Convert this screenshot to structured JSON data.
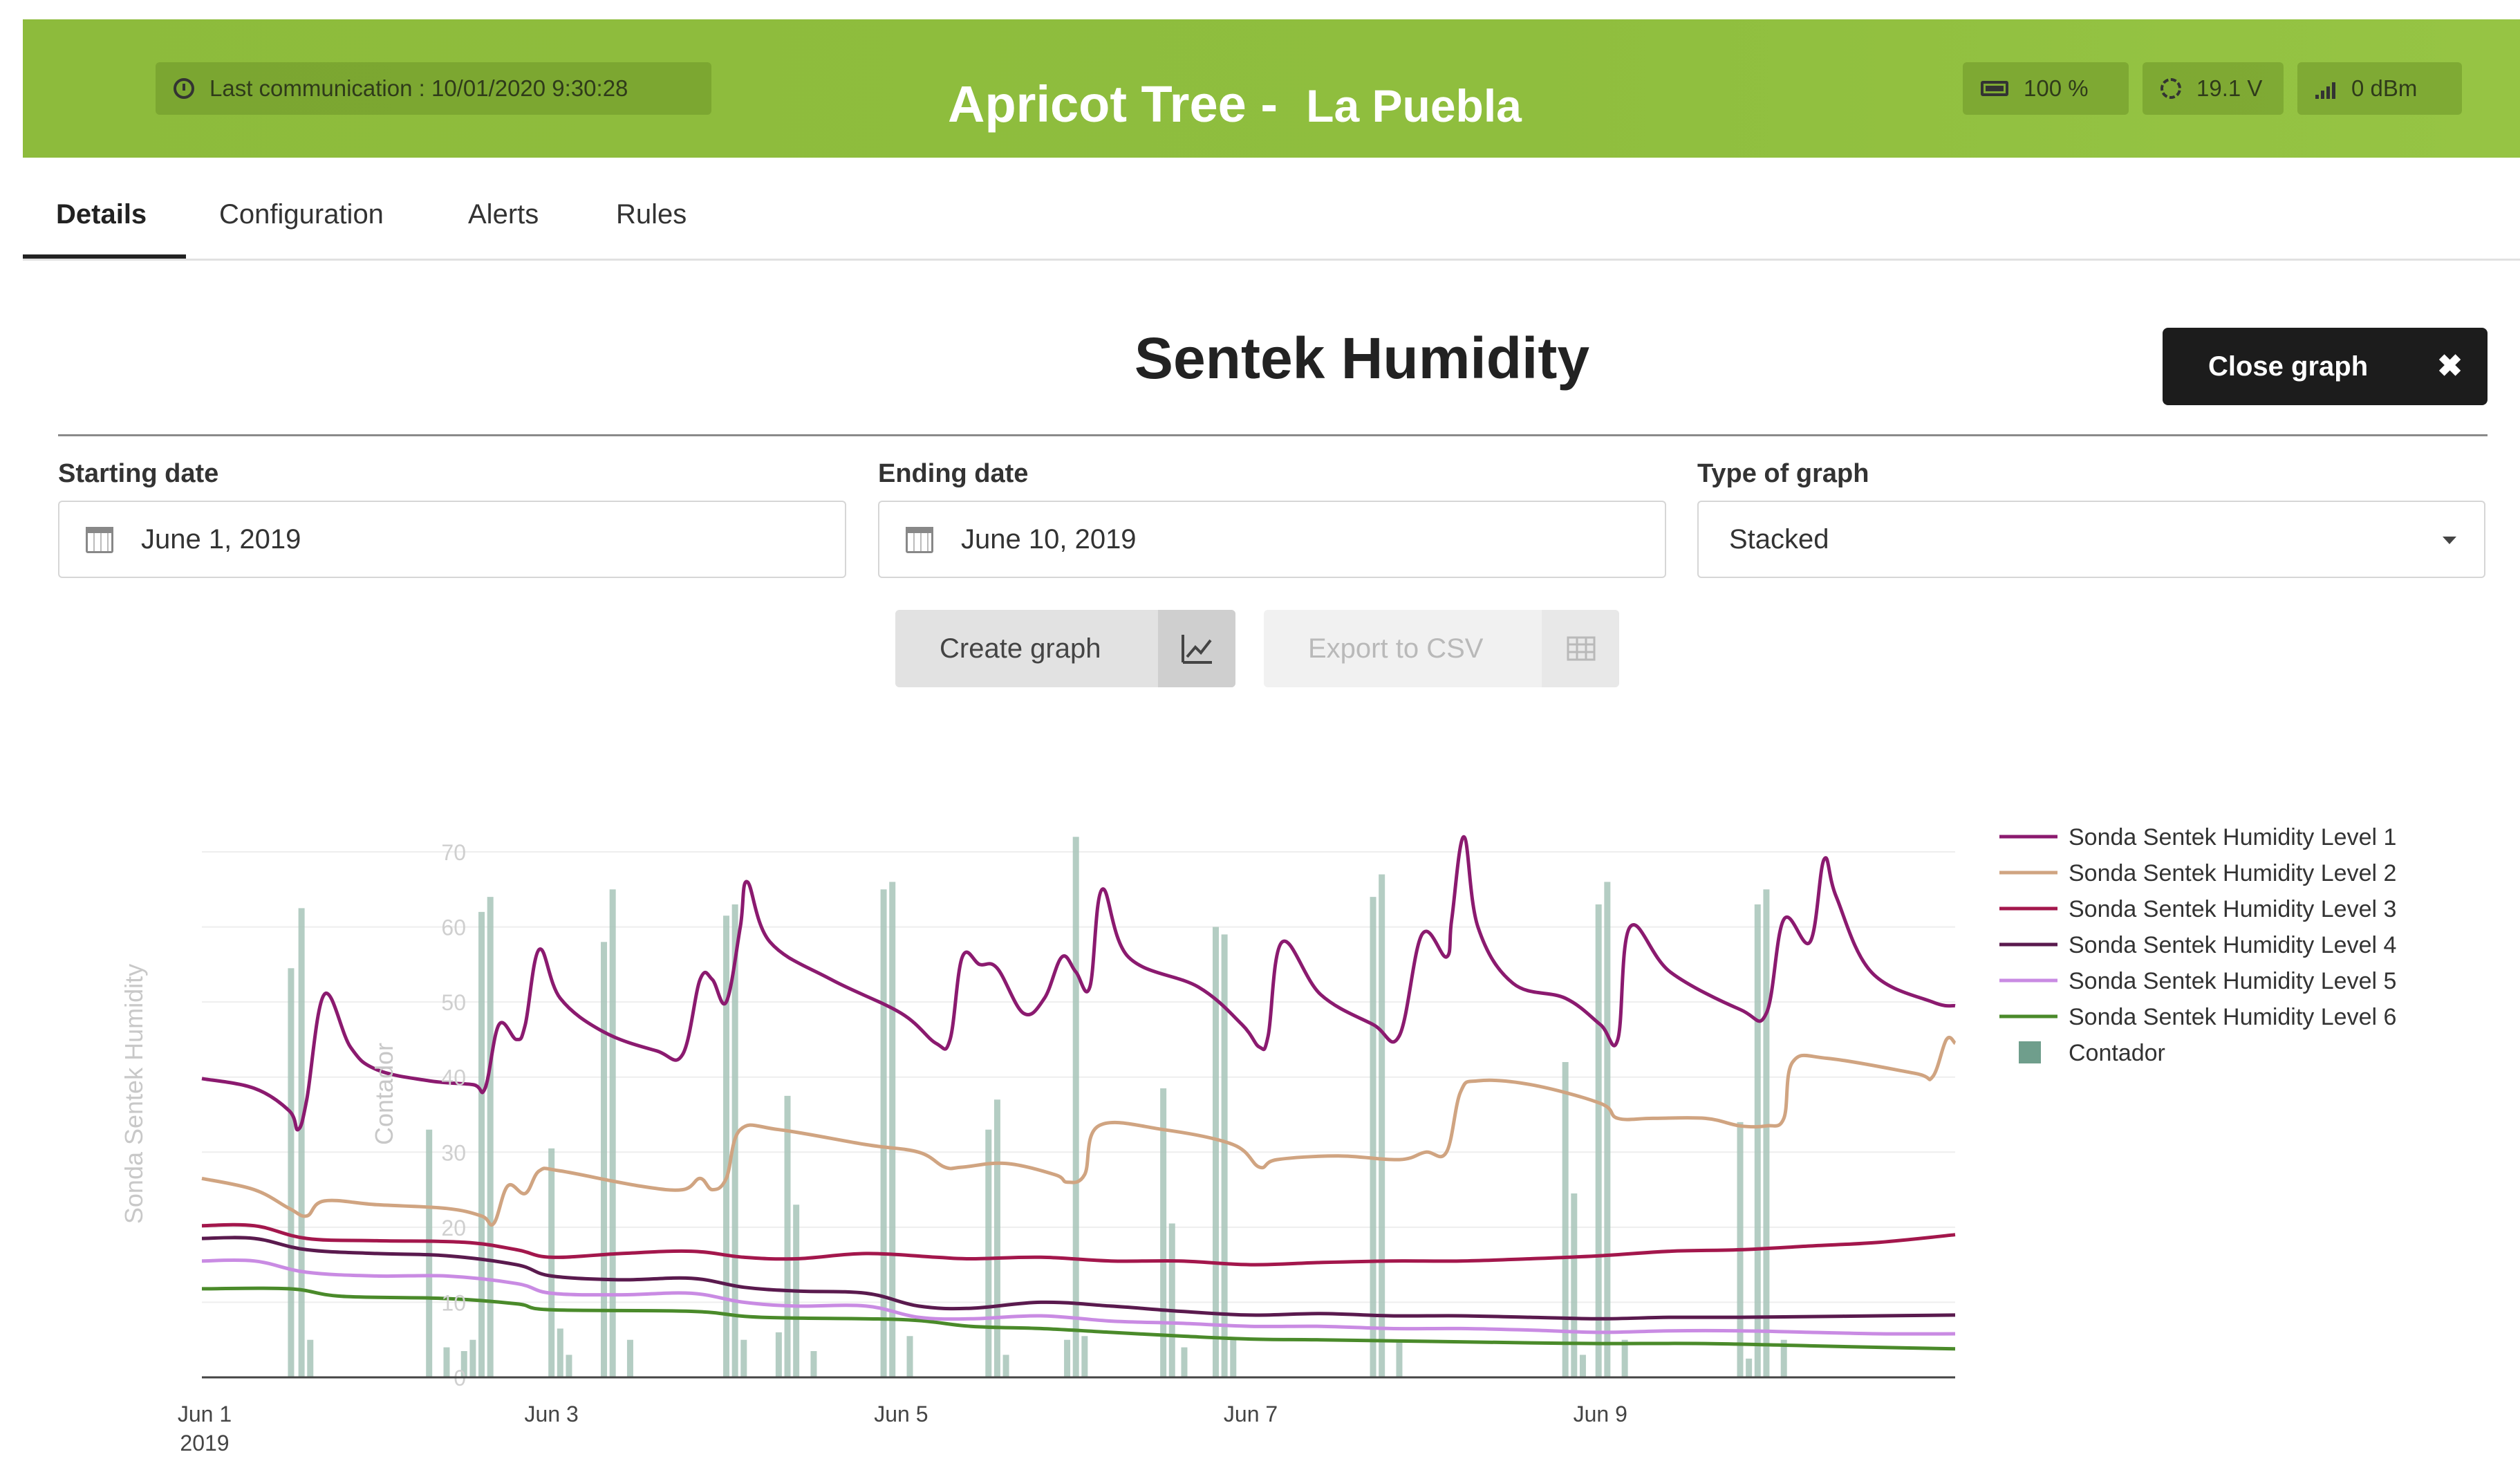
{
  "header": {
    "last_communication": "Last communication : 10/01/2020 9:30:28",
    "title": "Apricot Tree -",
    "location": "La Puebla",
    "battery": "100 %",
    "voltage": "19.1 V",
    "signal": "0 dBm",
    "icons": [
      "clock-icon",
      "battery-icon",
      "sun-icon",
      "signal-icon"
    ],
    "color": "#8fbe3e"
  },
  "tabs": [
    {
      "label": "Details",
      "active": true
    },
    {
      "label": "Configuration",
      "active": false
    },
    {
      "label": "Alerts",
      "active": false
    },
    {
      "label": "Rules",
      "active": false
    }
  ],
  "graph_panel": {
    "title": "Sentek Humidity",
    "close_label": "Close graph",
    "close_glyph": "✖",
    "starting_date_label": "Starting date",
    "starting_date_value": "June 1, 2019",
    "ending_date_label": "Ending date",
    "ending_date_value": "June 10, 2019",
    "type_label": "Type of graph",
    "type_value": "Stacked",
    "create_label": "Create graph",
    "export_label": "Export to CSV"
  },
  "chart_data": {
    "type": "line",
    "ylabel": "Sonda Sentek Humidity",
    "y2label": "Contador",
    "xlim": [
      1,
      11.03
    ],
    "ylim": [
      0,
      70
    ],
    "yticks": [
      10,
      20,
      30,
      40,
      50,
      60,
      70
    ],
    "y2ticks": [
      0
    ],
    "x_ticks": [
      {
        "x": 1,
        "label": "Jun 1",
        "sublabel": "2019"
      },
      {
        "x": 3,
        "label": "Jun 3"
      },
      {
        "x": 5,
        "label": "Jun 5"
      },
      {
        "x": 7,
        "label": "Jun 7"
      },
      {
        "x": 9,
        "label": "Jun 9"
      }
    ],
    "legend_position": "right",
    "series": [
      {
        "name": "Sonda Sentek Humidity Level 1",
        "color": "#8b1a6f",
        "points": [
          [
            1,
            39.8
          ],
          [
            1.3,
            38.5
          ],
          [
            1.5,
            35.5
          ],
          [
            1.55,
            33
          ],
          [
            1.6,
            37
          ],
          [
            1.7,
            51
          ],
          [
            1.85,
            44
          ],
          [
            2,
            41
          ],
          [
            2.3,
            39.5
          ],
          [
            2.55,
            39
          ],
          [
            2.62,
            38.5
          ],
          [
            2.7,
            47
          ],
          [
            2.8,
            45
          ],
          [
            2.85,
            47
          ],
          [
            2.93,
            57
          ],
          [
            3.05,
            50.5
          ],
          [
            3.3,
            46
          ],
          [
            3.6,
            43.5
          ],
          [
            3.75,
            43
          ],
          [
            3.85,
            53
          ],
          [
            3.92,
            53
          ],
          [
            4.0,
            50
          ],
          [
            4.08,
            60
          ],
          [
            4.12,
            66
          ],
          [
            4.25,
            58
          ],
          [
            4.6,
            53
          ],
          [
            5.0,
            48.5
          ],
          [
            5.2,
            44.5
          ],
          [
            5.28,
            45
          ],
          [
            5.35,
            56
          ],
          [
            5.45,
            55
          ],
          [
            5.55,
            54.5
          ],
          [
            5.7,
            48.5
          ],
          [
            5.82,
            50.5
          ],
          [
            5.92,
            56
          ],
          [
            6.0,
            54
          ],
          [
            6.08,
            52
          ],
          [
            6.15,
            65
          ],
          [
            6.3,
            56
          ],
          [
            6.7,
            52
          ],
          [
            6.95,
            47
          ],
          [
            7.05,
            44
          ],
          [
            7.1,
            45.5
          ],
          [
            7.18,
            58
          ],
          [
            7.4,
            51
          ],
          [
            7.7,
            47
          ],
          [
            7.85,
            45.5
          ],
          [
            7.98,
            59
          ],
          [
            8.12,
            56
          ],
          [
            8.15,
            61
          ],
          [
            8.22,
            72
          ],
          [
            8.3,
            60
          ],
          [
            8.5,
            52.5
          ],
          [
            8.8,
            50.5
          ],
          [
            9.0,
            47
          ],
          [
            9.1,
            45
          ],
          [
            9.17,
            60
          ],
          [
            9.4,
            54
          ],
          [
            9.8,
            49
          ],
          [
            9.95,
            48.5
          ],
          [
            10.05,
            61
          ],
          [
            10.2,
            58
          ],
          [
            10.28,
            69
          ],
          [
            10.35,
            64
          ],
          [
            10.55,
            54
          ],
          [
            10.9,
            50
          ],
          [
            11.03,
            49.5
          ]
        ]
      },
      {
        "name": "Sonda Sentek Humidity Level 2",
        "color": "#d0a481",
        "points": [
          [
            1,
            26.5
          ],
          [
            1.3,
            25
          ],
          [
            1.5,
            22.5
          ],
          [
            1.6,
            21.5
          ],
          [
            1.7,
            23.5
          ],
          [
            2,
            23
          ],
          [
            2.4,
            22.5
          ],
          [
            2.6,
            21.5
          ],
          [
            2.67,
            20.5
          ],
          [
            2.75,
            25.5
          ],
          [
            2.85,
            24.5
          ],
          [
            2.93,
            27.5
          ],
          [
            3.05,
            27.5
          ],
          [
            3.5,
            25.5
          ],
          [
            3.75,
            25
          ],
          [
            3.85,
            26.5
          ],
          [
            3.92,
            25
          ],
          [
            4.0,
            26.5
          ],
          [
            4.08,
            33
          ],
          [
            4.3,
            33
          ],
          [
            4.8,
            31
          ],
          [
            5.1,
            30
          ],
          [
            5.25,
            28
          ],
          [
            5.35,
            28
          ],
          [
            5.6,
            28.5
          ],
          [
            5.88,
            27
          ],
          [
            5.95,
            26
          ],
          [
            6.05,
            27
          ],
          [
            6.13,
            33.5
          ],
          [
            6.5,
            33
          ],
          [
            6.9,
            31
          ],
          [
            7.05,
            28
          ],
          [
            7.15,
            29
          ],
          [
            7.5,
            29.5
          ],
          [
            7.85,
            29
          ],
          [
            8.0,
            30
          ],
          [
            8.12,
            30
          ],
          [
            8.2,
            38
          ],
          [
            8.3,
            39.5
          ],
          [
            8.6,
            39
          ],
          [
            9.0,
            36.5
          ],
          [
            9.1,
            34.5
          ],
          [
            9.3,
            34.5
          ],
          [
            9.6,
            34.5
          ],
          [
            9.8,
            33.5
          ],
          [
            9.95,
            33.5
          ],
          [
            10.05,
            34.5
          ],
          [
            10.1,
            42
          ],
          [
            10.3,
            42.5
          ],
          [
            10.8,
            40.5
          ],
          [
            10.9,
            40
          ],
          [
            10.98,
            45
          ],
          [
            11.03,
            44.5
          ]
        ]
      },
      {
        "name": "Sonda Sentek Humidity Level 3",
        "color": "#a3174c",
        "points": [
          [
            1,
            20.2
          ],
          [
            1.3,
            20.2
          ],
          [
            1.6,
            18.5
          ],
          [
            2,
            18.2
          ],
          [
            2.5,
            18
          ],
          [
            2.8,
            17
          ],
          [
            3.0,
            16
          ],
          [
            3.4,
            16.5
          ],
          [
            3.8,
            16.8
          ],
          [
            4.1,
            16
          ],
          [
            4.4,
            15.8
          ],
          [
            4.8,
            16.5
          ],
          [
            5.2,
            16
          ],
          [
            5.4,
            15.8
          ],
          [
            5.8,
            16
          ],
          [
            6.2,
            15.5
          ],
          [
            6.6,
            15.5
          ],
          [
            7.0,
            15
          ],
          [
            7.4,
            15.3
          ],
          [
            7.8,
            15.5
          ],
          [
            8.2,
            15.5
          ],
          [
            8.6,
            15.8
          ],
          [
            9.0,
            16.2
          ],
          [
            9.4,
            16.8
          ],
          [
            9.8,
            17
          ],
          [
            10.2,
            17.5
          ],
          [
            10.6,
            18
          ],
          [
            11.03,
            19
          ]
        ]
      },
      {
        "name": "Sonda Sentek Humidity Level 4",
        "color": "#5a1a4e",
        "points": [
          [
            1,
            18.5
          ],
          [
            1.3,
            18.5
          ],
          [
            1.6,
            17
          ],
          [
            2,
            16.5
          ],
          [
            2.4,
            16.2
          ],
          [
            2.8,
            15
          ],
          [
            3.0,
            13.5
          ],
          [
            3.4,
            13
          ],
          [
            3.8,
            13.2
          ],
          [
            4.1,
            12
          ],
          [
            4.4,
            11.5
          ],
          [
            4.8,
            11.2
          ],
          [
            5.1,
            9.5
          ],
          [
            5.4,
            9.2
          ],
          [
            5.8,
            10
          ],
          [
            6.2,
            9.5
          ],
          [
            6.6,
            8.8
          ],
          [
            7.0,
            8.3
          ],
          [
            7.4,
            8.5
          ],
          [
            7.8,
            8.2
          ],
          [
            8.2,
            8.2
          ],
          [
            8.6,
            8
          ],
          [
            9.0,
            7.8
          ],
          [
            9.4,
            8
          ],
          [
            9.8,
            8
          ],
          [
            10.2,
            8.1
          ],
          [
            10.6,
            8.2
          ],
          [
            11.03,
            8.3
          ]
        ]
      },
      {
        "name": "Sonda Sentek Humidity Level 5",
        "color": "#c98be3",
        "points": [
          [
            1,
            15.5
          ],
          [
            1.3,
            15.5
          ],
          [
            1.6,
            14
          ],
          [
            2,
            13.5
          ],
          [
            2.4,
            13.5
          ],
          [
            2.8,
            12.5
          ],
          [
            3.0,
            11.2
          ],
          [
            3.4,
            11
          ],
          [
            3.8,
            11.2
          ],
          [
            4.1,
            10
          ],
          [
            4.4,
            9.5
          ],
          [
            4.8,
            9.5
          ],
          [
            5.1,
            8
          ],
          [
            5.4,
            7.8
          ],
          [
            5.8,
            8.2
          ],
          [
            6.2,
            7.5
          ],
          [
            6.6,
            7.2
          ],
          [
            7.0,
            6.8
          ],
          [
            7.4,
            6.8
          ],
          [
            7.8,
            6.5
          ],
          [
            8.2,
            6.5
          ],
          [
            8.6,
            6.3
          ],
          [
            9.0,
            6
          ],
          [
            9.4,
            6.2
          ],
          [
            9.8,
            6.2
          ],
          [
            10.2,
            6
          ],
          [
            10.6,
            5.8
          ],
          [
            11.03,
            5.8
          ]
        ]
      },
      {
        "name": "Sonda Sentek Humidity Level 6",
        "color": "#4a8a2a",
        "points": [
          [
            1,
            11.8
          ],
          [
            1.5,
            11.8
          ],
          [
            1.8,
            10.8
          ],
          [
            2.4,
            10.5
          ],
          [
            2.8,
            9.8
          ],
          [
            3.0,
            9
          ],
          [
            3.8,
            8.8
          ],
          [
            4.2,
            8
          ],
          [
            5.0,
            7.7
          ],
          [
            5.4,
            6.8
          ],
          [
            5.8,
            6.5
          ],
          [
            6.2,
            6
          ],
          [
            6.6,
            5.5
          ],
          [
            7.0,
            5.1
          ],
          [
            7.4,
            5
          ],
          [
            8.0,
            4.8
          ],
          [
            8.6,
            4.6
          ],
          [
            9.0,
            4.5
          ],
          [
            9.6,
            4.5
          ],
          [
            10.2,
            4.2
          ],
          [
            10.6,
            4
          ],
          [
            11.03,
            3.8
          ]
        ]
      }
    ],
    "bars": {
      "name": "Contador",
      "color": "#a7c4b8",
      "values": [
        [
          1.51,
          54.5
        ],
        [
          1.57,
          62.5
        ],
        [
          1.62,
          5
        ],
        [
          2.3,
          33
        ],
        [
          2.4,
          4
        ],
        [
          2.5,
          3.5
        ],
        [
          2.55,
          5
        ],
        [
          2.6,
          62
        ],
        [
          2.65,
          64
        ],
        [
          3.0,
          30.5
        ],
        [
          3.05,
          6.5
        ],
        [
          3.1,
          3
        ],
        [
          3.3,
          58
        ],
        [
          3.35,
          65
        ],
        [
          3.45,
          5
        ],
        [
          4.0,
          61.5
        ],
        [
          4.05,
          63
        ],
        [
          4.1,
          5
        ],
        [
          4.3,
          6
        ],
        [
          4.35,
          37.5
        ],
        [
          4.4,
          23
        ],
        [
          4.5,
          3.5
        ],
        [
          4.9,
          65
        ],
        [
          4.95,
          66
        ],
        [
          5.05,
          5.5
        ],
        [
          5.5,
          33
        ],
        [
          5.55,
          37
        ],
        [
          5.6,
          3
        ],
        [
          5.95,
          5
        ],
        [
          6.0,
          72
        ],
        [
          6.05,
          5.5
        ],
        [
          6.5,
          38.5
        ],
        [
          6.55,
          20.5
        ],
        [
          6.62,
          4
        ],
        [
          6.8,
          60
        ],
        [
          6.85,
          59
        ],
        [
          6.9,
          5
        ],
        [
          7.7,
          64
        ],
        [
          7.75,
          67
        ],
        [
          7.85,
          5
        ],
        [
          8.8,
          42
        ],
        [
          8.85,
          24.5
        ],
        [
          8.9,
          3
        ],
        [
          8.99,
          63
        ],
        [
          9.04,
          66
        ],
        [
          9.14,
          5
        ],
        [
          9.8,
          34
        ],
        [
          9.85,
          2.5
        ],
        [
          9.9,
          63
        ],
        [
          9.95,
          65
        ],
        [
          10.05,
          5
        ]
      ]
    }
  }
}
